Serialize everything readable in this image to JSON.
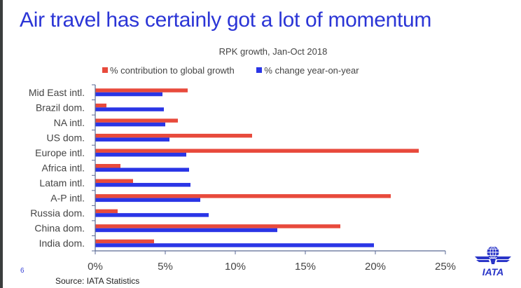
{
  "slide": {
    "title": "Air travel has certainly got a lot of momentum",
    "page_number": "6",
    "source": "Source: IATA Statistics",
    "logo_text": "IATA"
  },
  "colors": {
    "title": "#2b35d6",
    "contribution": "#e84a3c",
    "change": "#2a35e6",
    "axis": "#5a6a94"
  },
  "chart_data": {
    "type": "bar",
    "orientation": "horizontal",
    "title": "RPK growth, Jan-Oct 2018",
    "xlabel": "",
    "ylabel": "",
    "categories": [
      "Mid East intl.",
      "Brazil dom.",
      "NA intl.",
      "US dom.",
      "Europe intl.",
      "Africa intl.",
      "Latam intl.",
      "A-P intl.",
      "Russia dom.",
      "China dom.",
      "India dom."
    ],
    "series": [
      {
        "name": "% contribution to global growth",
        "color": "#e84a3c",
        "values": [
          6.6,
          0.8,
          5.9,
          11.2,
          23.1,
          1.8,
          2.7,
          21.1,
          1.6,
          17.5,
          4.2
        ]
      },
      {
        "name": "% change year-on-year",
        "color": "#2a35e6",
        "values": [
          4.8,
          4.9,
          5.0,
          5.3,
          6.5,
          6.7,
          6.8,
          7.5,
          8.1,
          13.0,
          19.9
        ]
      }
    ],
    "xlim": [
      0,
      25
    ],
    "xticks": [
      0,
      5,
      10,
      15,
      20,
      25
    ],
    "xtick_labels": [
      "0%",
      "5%",
      "10%",
      "15%",
      "20%",
      "25%"
    ],
    "grid": false,
    "legend_position": "top"
  }
}
